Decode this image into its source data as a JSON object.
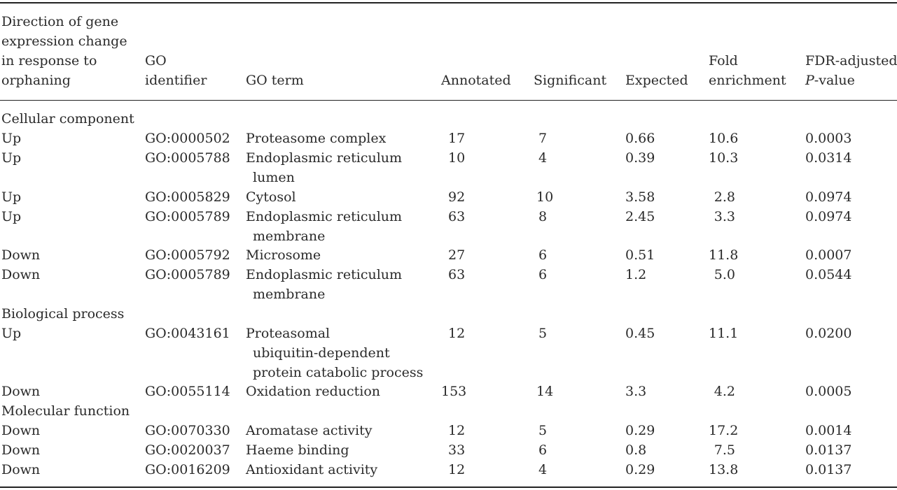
{
  "headers": {
    "direction": [
      "Direction of gene",
      "expression change",
      "in response to",
      "orphaning"
    ],
    "go_identifier": [
      "GO",
      "identifier"
    ],
    "go_term": "GO term",
    "annotated": "Annotated",
    "significant": "Significant",
    "expected": "Expected",
    "fold_enrichment": [
      "Fold",
      "enrichment"
    ],
    "fdr": [
      "FDR-adjusted",
      "P",
      "-value"
    ]
  },
  "sections": {
    "cellular": "Cellular component",
    "biological": "Biological process",
    "molecular": "Molecular function"
  },
  "rows": [
    {
      "direction": "Up",
      "go_id": "GO:0000502",
      "term": [
        "Proteasome complex"
      ],
      "annotated": "17",
      "significant": "7",
      "expected": "0.66",
      "fold": "10.6",
      "fdr": "0.0003"
    },
    {
      "direction": "Up",
      "go_id": "GO:0005788",
      "term": [
        "Endoplasmic reticulum",
        "lumen"
      ],
      "annotated": "10",
      "significant": "4",
      "expected": "0.39",
      "fold": "10.3",
      "fdr": "0.0314"
    },
    {
      "direction": "Up",
      "go_id": "GO:0005829",
      "term": [
        "Cytosol"
      ],
      "annotated": "92",
      "significant": "10",
      "expected": "3.58",
      "fold": "2.8",
      "fdr": "0.0974"
    },
    {
      "direction": "Up",
      "go_id": "GO:0005789",
      "term": [
        "Endoplasmic reticulum",
        "membrane"
      ],
      "annotated": "63",
      "significant": "8",
      "expected": "2.45",
      "fold": "3.3",
      "fdr": "0.0974"
    },
    {
      "direction": "Down",
      "go_id": "GO:0005792",
      "term": [
        "Microsome"
      ],
      "annotated": "27",
      "significant": "6",
      "expected": "0.51",
      "fold": "11.8",
      "fdr": "0.0007"
    },
    {
      "direction": "Down",
      "go_id": "GO:0005789",
      "term": [
        "Endoplasmic reticulum",
        "membrane"
      ],
      "annotated": "63",
      "significant": "6",
      "expected": "1.2",
      "fold": "5.0",
      "fdr": "0.0544"
    },
    {
      "direction": "Up",
      "go_id": "GO:0043161",
      "term": [
        "Proteasomal",
        "ubiquitin-dependent",
        "protein catabolic process"
      ],
      "annotated": "12",
      "significant": "5",
      "expected": "0.45",
      "fold": "11.1",
      "fdr": "0.0200"
    },
    {
      "direction": "Down",
      "go_id": "GO:0055114",
      "term": [
        "Oxidation reduction"
      ],
      "annotated": "153",
      "significant": "14",
      "expected": "3.3",
      "fold": "4.2",
      "fdr": "0.0005"
    },
    {
      "direction": "Down",
      "go_id": "GO:0070330",
      "term": [
        "Aromatase activity"
      ],
      "annotated": "12",
      "significant": "5",
      "expected": "0.29",
      "fold": "17.2",
      "fdr": "0.0014"
    },
    {
      "direction": "Down",
      "go_id": "GO:0020037",
      "term": [
        "Haeme binding"
      ],
      "annotated": "33",
      "significant": "6",
      "expected": "0.8",
      "fold": "7.5",
      "fdr": "0.0137"
    },
    {
      "direction": "Down",
      "go_id": "GO:0016209",
      "term": [
        "Antioxidant activity"
      ],
      "annotated": "12",
      "significant": "4",
      "expected": "0.29",
      "fold": "13.8",
      "fdr": "0.0137"
    }
  ]
}
